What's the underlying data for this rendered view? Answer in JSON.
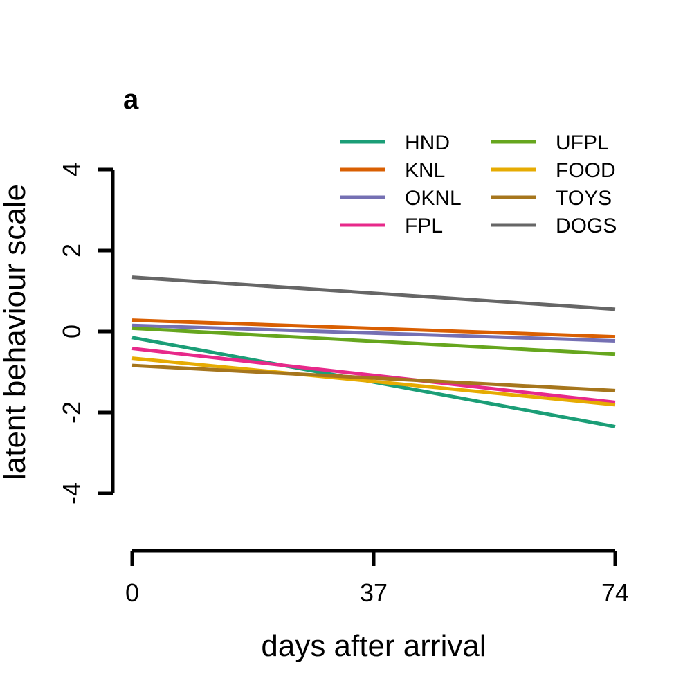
{
  "chart_data": {
    "type": "line",
    "panel_label": "a",
    "xlabel": "days after arrival",
    "ylabel": "latent behaviour scale",
    "xlim": [
      0,
      74
    ],
    "ylim": [
      -4,
      4
    ],
    "x_ticks": [
      0,
      37,
      74
    ],
    "x_tick_labels": [
      "0",
      "37",
      "74"
    ],
    "y_ticks": [
      -4,
      -2,
      0,
      2,
      4
    ],
    "y_tick_labels": [
      "-4",
      "-2",
      "0",
      "2",
      "4"
    ],
    "grid": false,
    "legend_position": "top-right",
    "legend_columns": 2,
    "x": [
      0,
      74
    ],
    "series": [
      {
        "name": "HND",
        "color": "#1b9e77",
        "values": [
          -0.15,
          -2.35
        ]
      },
      {
        "name": "KNL",
        "color": "#d95f02",
        "values": [
          0.28,
          -0.13
        ]
      },
      {
        "name": "OKNL",
        "color": "#7570b3",
        "values": [
          0.15,
          -0.23
        ]
      },
      {
        "name": "FPL",
        "color": "#e7298a",
        "values": [
          -0.42,
          -1.75
        ]
      },
      {
        "name": "UFPL",
        "color": "#66a61e",
        "values": [
          0.08,
          -0.56
        ]
      },
      {
        "name": "FOOD",
        "color": "#e6ab02",
        "values": [
          -0.66,
          -1.81
        ]
      },
      {
        "name": "TOYS",
        "color": "#a6761d",
        "values": [
          -0.84,
          -1.46
        ]
      },
      {
        "name": "DOGS",
        "color": "#666666",
        "values": [
          1.34,
          0.55
        ]
      }
    ]
  }
}
